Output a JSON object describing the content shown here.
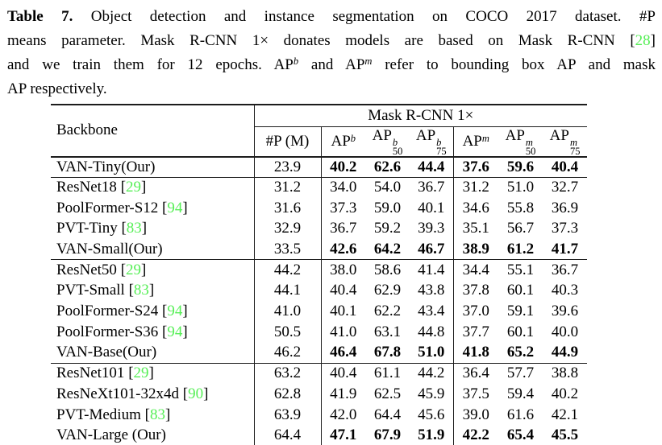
{
  "caption": {
    "lines": [
      [
        {
          "t": "Table 7.",
          "b": 1
        },
        {
          "t": " Object detection and instance segmentation on COCO 2017 dataset. #P"
        }
      ],
      [
        {
          "t": "means parameter. Mask R-CNN 1× donates models are based on Mask R-CNN "
        },
        {
          "t": "["
        },
        {
          "t": "28",
          "g": 1
        },
        {
          "t": "]"
        }
      ],
      [
        {
          "t": "and we train them for 12 epochs. AP"
        },
        {
          "t": "b",
          "sup": 1
        },
        {
          "t": " and AP"
        },
        {
          "t": "m",
          "sup": 1
        },
        {
          "t": " refer to bounding box AP and mask"
        }
      ],
      [
        {
          "t": "AP respectively."
        }
      ]
    ]
  },
  "table": {
    "punct": {
      "open": "[",
      "close": "]"
    },
    "colors": {
      "citation_green": "#56ef56",
      "rule": "#1c1c1c"
    },
    "header": {
      "backbone": "Backbone",
      "span_title": "Mask R-CNN 1×",
      "cols": [
        {
          "text": "#P (M)"
        },
        {
          "base": "AP",
          "sup": "b"
        },
        {
          "base": "AP",
          "sup": "b",
          "sub": "50"
        },
        {
          "base": "AP",
          "sup": "b",
          "sub": "75"
        },
        {
          "base": "AP",
          "sup": "m"
        },
        {
          "base": "AP",
          "sup": "m",
          "sub": "50"
        },
        {
          "base": "AP",
          "sup": "m",
          "sub": "75"
        }
      ]
    },
    "groups": [
      {
        "rows": [
          {
            "name": "VAN-Tiny(Our)",
            "cite": "",
            "p": "23.9",
            "vals": [
              "40.2",
              "62.6",
              "44.4",
              "37.6",
              "59.6",
              "40.4"
            ],
            "bold": true
          }
        ]
      },
      {
        "rows": [
          {
            "name": "ResNet18",
            "cite": "29",
            "p": "31.2",
            "vals": [
              "34.0",
              "54.0",
              "36.7",
              "31.2",
              "51.0",
              "32.7"
            ],
            "bold": false
          },
          {
            "name": "PoolFormer-S12",
            "cite": "94",
            "p": "31.6",
            "vals": [
              "37.3",
              "59.0",
              "40.1",
              "34.6",
              "55.8",
              "36.9"
            ],
            "bold": false
          },
          {
            "name": "PVT-Tiny",
            "cite": "83",
            "p": "32.9",
            "vals": [
              "36.7",
              "59.2",
              "39.3",
              "35.1",
              "56.7",
              "37.3"
            ],
            "bold": false
          },
          {
            "name": "VAN-Small(Our)",
            "cite": "",
            "p": "33.5",
            "vals": [
              "42.6",
              "64.2",
              "46.7",
              "38.9",
              "61.2",
              "41.7"
            ],
            "bold": true
          }
        ]
      },
      {
        "rows": [
          {
            "name": "ResNet50",
            "cite": "29",
            "p": "44.2",
            "vals": [
              "38.0",
              "58.6",
              "41.4",
              "34.4",
              "55.1",
              "36.7"
            ],
            "bold": false
          },
          {
            "name": "PVT-Small",
            "cite": "83",
            "p": "44.1",
            "vals": [
              "40.4",
              "62.9",
              "43.8",
              "37.8",
              "60.1",
              "40.3"
            ],
            "bold": false
          },
          {
            "name": "PoolFormer-S24",
            "cite": "94",
            "p": "41.0",
            "vals": [
              "40.1",
              "62.2",
              "43.4",
              "37.0",
              "59.1",
              "39.6"
            ],
            "bold": false
          },
          {
            "name": "PoolFormer-S36",
            "cite": "94",
            "p": "50.5",
            "vals": [
              "41.0",
              "63.1",
              "44.8",
              "37.7",
              "60.1",
              "40.0"
            ],
            "bold": false
          },
          {
            "name": "VAN-Base(Our)",
            "cite": "",
            "p": "46.2",
            "vals": [
              "46.4",
              "67.8",
              "51.0",
              "41.8",
              "65.2",
              "44.9"
            ],
            "bold": true
          }
        ]
      },
      {
        "rows": [
          {
            "name": "ResNet101",
            "cite": "29",
            "p": "63.2",
            "vals": [
              "40.4",
              "61.1",
              "44.2",
              "36.4",
              "57.7",
              "38.8"
            ],
            "bold": false
          },
          {
            "name": "ResNeXt101-32x4d",
            "cite": "90",
            "p": "62.8",
            "vals": [
              "41.9",
              "62.5",
              "45.9",
              "37.5",
              "59.4",
              "40.2"
            ],
            "bold": false
          },
          {
            "name": "PVT-Medium",
            "cite": "83",
            "p": "63.9",
            "vals": [
              "42.0",
              "64.4",
              "45.6",
              "39.0",
              "61.6",
              "42.1"
            ],
            "bold": false
          },
          {
            "name": "VAN-Large (Our)",
            "cite": "",
            "p": "64.4",
            "vals": [
              "47.1",
              "67.9",
              "51.9",
              "42.2",
              "65.4",
              "45.5"
            ],
            "bold": true
          }
        ]
      }
    ]
  }
}
